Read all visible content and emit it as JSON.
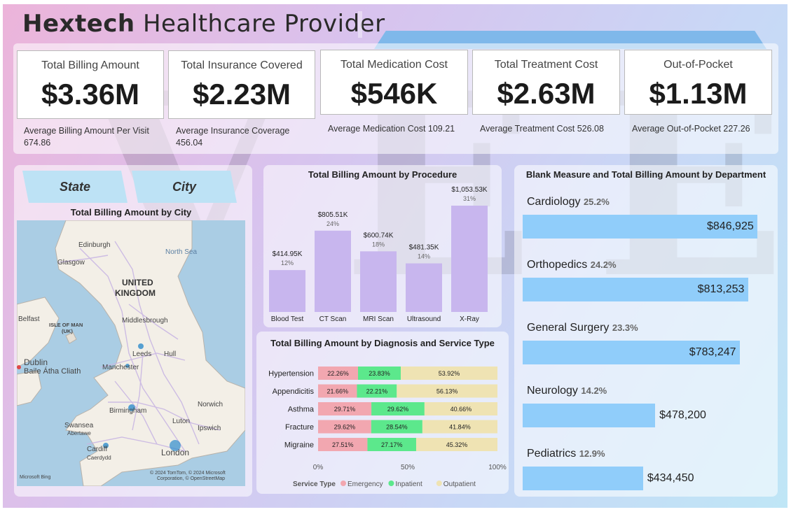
{
  "header": {
    "title_bold": "Hextech",
    "title_rest": "Healthcare Provider"
  },
  "watermark": "VET",
  "kpis": [
    {
      "label": "Total Billing Amount",
      "value": "$3.36M",
      "sub": "Average Billing Amount Per Visit",
      "sub2": "674.86"
    },
    {
      "label": "Total Insurance Covered",
      "value": "$2.23M",
      "sub": "Average Insurance Coverage",
      "sub2": "456.04"
    },
    {
      "label": "Total Medication Cost",
      "value": "$546K",
      "sub": "Average Medication Cost 109.21",
      "sub2": ""
    },
    {
      "label": "Total Treatment Cost",
      "value": "$2.63M",
      "sub": "Average Treatment Cost 526.08",
      "sub2": ""
    },
    {
      "label": "Out-of-Pocket",
      "value": "$1.13M",
      "sub": "Average Out-of-Pocket 227.26",
      "sub2": ""
    }
  ],
  "slicers": {
    "state": "State",
    "city": "City"
  },
  "map": {
    "title": "Total Billing Amount by City",
    "labels": {
      "edinburgh": "Edinburgh",
      "glasgow": "Glasgow",
      "north_sea": "North Sea",
      "uk1": "UNITED",
      "uk2": "KINGDOM",
      "belfast": "Belfast",
      "isle1": "ISLE OF MAN",
      "isle2": "(UK)",
      "middlesbrough": "Middlesbrough",
      "leeds": "Leeds",
      "hull": "Hull",
      "dublin": "Dublin",
      "baile": "Baile Átha Cliath",
      "manchester": "Manchester",
      "norwich": "Norwich",
      "birmingham": "Birmingham",
      "swansea": "Swansea",
      "abertawe": "Abertawe",
      "luton": "Luton",
      "ipswich": "Ipswich",
      "cardiff": "Cardiff",
      "caerdydd": "Caerdydd",
      "london": "London",
      "bing": "Microsoft Bing",
      "copyright": "© 2024 TomTom, © 2024 Microsoft",
      "copyright2": "Corporation, © OpenStreetMap"
    }
  },
  "procedure_chart": {
    "title": "Total Billing Amount by Procedure",
    "chart_data": {
      "type": "bar",
      "categories": [
        "Blood Test",
        "CT Scan",
        "MRI Scan",
        "Ultrasound",
        "X-Ray"
      ],
      "values": [
        414950,
        805510,
        600740,
        481350,
        1053530
      ],
      "value_labels": [
        "$414.95K",
        "$805.51K",
        "$600.74K",
        "$481.35K",
        "$1,053.53K"
      ],
      "pct_labels": [
        "12%",
        "24%",
        "18%",
        "14%",
        "31%"
      ],
      "color": "#c8b6ee"
    }
  },
  "diagnosis_chart": {
    "title": "Total Billing Amount by Diagnosis and Service Type",
    "chart_data": {
      "type": "bar",
      "orientation": "horizontal-stacked-100",
      "categories": [
        "Hypertension",
        "Appendicitis",
        "Asthma",
        "Fracture",
        "Migraine"
      ],
      "series": [
        {
          "name": "Emergency",
          "color": "#f2a7b0",
          "values": [
            22.26,
            21.66,
            29.71,
            29.62,
            27.51
          ]
        },
        {
          "name": "Inpatient",
          "color": "#5ce88c",
          "values": [
            23.83,
            22.21,
            29.62,
            28.54,
            27.17
          ]
        },
        {
          "name": "Outpatient",
          "color": "#efe3b3",
          "values": [
            53.92,
            56.13,
            40.66,
            41.84,
            45.32
          ]
        }
      ],
      "labels": [
        [
          "22.26%",
          "23.83%",
          "53.92%"
        ],
        [
          "21.66%",
          "22.21%",
          "56.13%"
        ],
        [
          "29.71%",
          "29.62%",
          "40.66%"
        ],
        [
          "29.62%",
          "28.54%",
          "41.84%"
        ],
        [
          "27.51%",
          "27.17%",
          "45.32%"
        ]
      ],
      "x_ticks": [
        "0%",
        "50%",
        "100%"
      ],
      "legend_title": "Service Type"
    }
  },
  "department_chart": {
    "title": "Blank Measure and Total Billing Amount by Department",
    "chart_data": {
      "type": "bar",
      "orientation": "horizontal",
      "categories": [
        "Cardiology",
        "Orthopedics",
        "General Surgery",
        "Neurology",
        "Pediatrics"
      ],
      "pcts": [
        "25.2%",
        "24.2%",
        "23.3%",
        "14.2%",
        "12.9%"
      ],
      "values": [
        846925,
        813253,
        783247,
        478200,
        434450
      ],
      "value_labels": [
        "$846,925",
        "$813,253",
        "$783,247",
        "$478,200",
        "$434,450"
      ],
      "color": "#90cdfa"
    }
  }
}
